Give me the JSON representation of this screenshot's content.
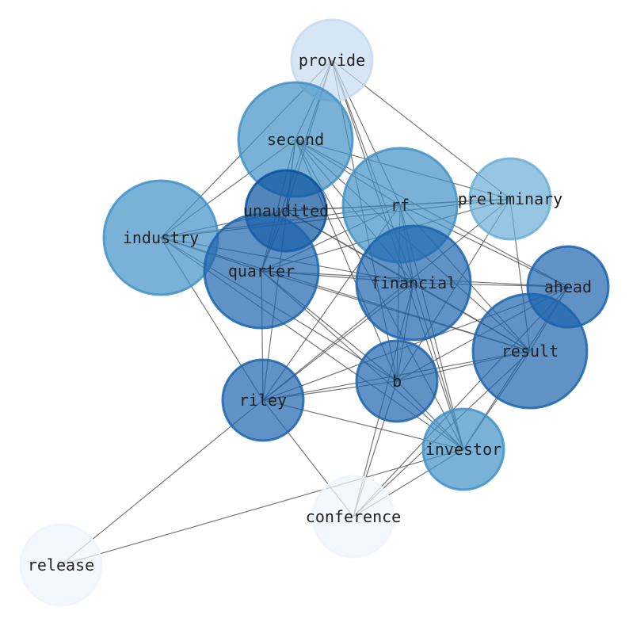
{
  "nodes": [
    {
      "id": "provide",
      "label": "provide",
      "shade": "#c6dbef",
      "size": "small"
    },
    {
      "id": "second",
      "label": "second",
      "shade": "#4292c6",
      "size": "large"
    },
    {
      "id": "rf",
      "label": "rf",
      "shade": "#4292c6",
      "size": "large"
    },
    {
      "id": "preliminary",
      "label": "preliminary",
      "shade": "#6baed6",
      "size": "small"
    },
    {
      "id": "unaudited",
      "label": "unaudited",
      "shade": "#08519c",
      "size": "small"
    },
    {
      "id": "industry",
      "label": "industry",
      "shade": "#4292c6",
      "size": "large"
    },
    {
      "id": "quarter",
      "label": "quarter",
      "shade": "#1c64ad",
      "size": "large"
    },
    {
      "id": "financial",
      "label": "financial",
      "shade": "#1c64ad",
      "size": "large"
    },
    {
      "id": "ahead",
      "label": "ahead",
      "shade": "#1c64ad",
      "size": "small"
    },
    {
      "id": "result",
      "label": "result",
      "shade": "#1c64ad",
      "size": "large"
    },
    {
      "id": "b",
      "label": "b",
      "shade": "#1c64ad",
      "size": "small"
    },
    {
      "id": "riley",
      "label": "riley",
      "shade": "#1c64ad",
      "size": "small"
    },
    {
      "id": "investor",
      "label": "investor",
      "shade": "#4292c6",
      "size": "small"
    },
    {
      "id": "conference",
      "label": "conference",
      "shade": "#eef5fd",
      "size": "small"
    },
    {
      "id": "release",
      "label": "release",
      "shade": "#eef5fd",
      "size": "small"
    }
  ],
  "edges": [
    [
      "provide",
      "industry"
    ],
    [
      "provide",
      "second"
    ],
    [
      "provide",
      "unaudited"
    ],
    [
      "provide",
      "quarter"
    ],
    [
      "provide",
      "preliminary"
    ],
    [
      "provide",
      "financial"
    ],
    [
      "provide",
      "b"
    ],
    [
      "provide",
      "investor"
    ],
    [
      "provide",
      "rf"
    ],
    [
      "second",
      "industry"
    ],
    [
      "second",
      "unaudited"
    ],
    [
      "second",
      "quarter"
    ],
    [
      "second",
      "rf"
    ],
    [
      "second",
      "financial"
    ],
    [
      "second",
      "preliminary"
    ],
    [
      "second",
      "ahead"
    ],
    [
      "second",
      "result"
    ],
    [
      "second",
      "b"
    ],
    [
      "second",
      "investor"
    ],
    [
      "second",
      "riley"
    ],
    [
      "industry",
      "unaudited"
    ],
    [
      "industry",
      "rf"
    ],
    [
      "industry",
      "preliminary"
    ],
    [
      "industry",
      "quarter"
    ],
    [
      "industry",
      "financial"
    ],
    [
      "industry",
      "b"
    ],
    [
      "industry",
      "investor"
    ],
    [
      "industry",
      "riley"
    ],
    [
      "industry",
      "result"
    ],
    [
      "unaudited",
      "rf"
    ],
    [
      "unaudited",
      "preliminary"
    ],
    [
      "unaudited",
      "result"
    ],
    [
      "unaudited",
      "financial"
    ],
    [
      "unaudited",
      "quarter"
    ],
    [
      "quarter",
      "rf"
    ],
    [
      "quarter",
      "preliminary"
    ],
    [
      "quarter",
      "financial"
    ],
    [
      "quarter",
      "ahead"
    ],
    [
      "quarter",
      "result"
    ],
    [
      "quarter",
      "b"
    ],
    [
      "quarter",
      "investor"
    ],
    [
      "quarter",
      "riley"
    ],
    [
      "rf",
      "financial"
    ],
    [
      "rf",
      "ahead"
    ],
    [
      "rf",
      "result"
    ],
    [
      "rf",
      "b"
    ],
    [
      "rf",
      "investor"
    ],
    [
      "rf",
      "riley"
    ],
    [
      "rf",
      "preliminary"
    ],
    [
      "preliminary",
      "result"
    ],
    [
      "preliminary",
      "riley"
    ],
    [
      "preliminary",
      "b"
    ],
    [
      "financial",
      "ahead"
    ],
    [
      "financial",
      "result"
    ],
    [
      "financial",
      "b"
    ],
    [
      "financial",
      "investor"
    ],
    [
      "financial",
      "riley"
    ],
    [
      "financial",
      "conference"
    ],
    [
      "ahead",
      "result"
    ],
    [
      "ahead",
      "riley"
    ],
    [
      "ahead",
      "investor"
    ],
    [
      "ahead",
      "conference"
    ],
    [
      "ahead",
      "b"
    ],
    [
      "result",
      "riley"
    ],
    [
      "result",
      "b"
    ],
    [
      "result",
      "investor"
    ],
    [
      "result",
      "conference"
    ],
    [
      "b",
      "riley"
    ],
    [
      "b",
      "conference"
    ],
    [
      "b",
      "investor"
    ],
    [
      "riley",
      "investor"
    ],
    [
      "riley",
      "conference"
    ],
    [
      "riley",
      "release"
    ],
    [
      "investor",
      "conference"
    ],
    [
      "investor",
      "release"
    ]
  ],
  "edge_color": "#555555"
}
